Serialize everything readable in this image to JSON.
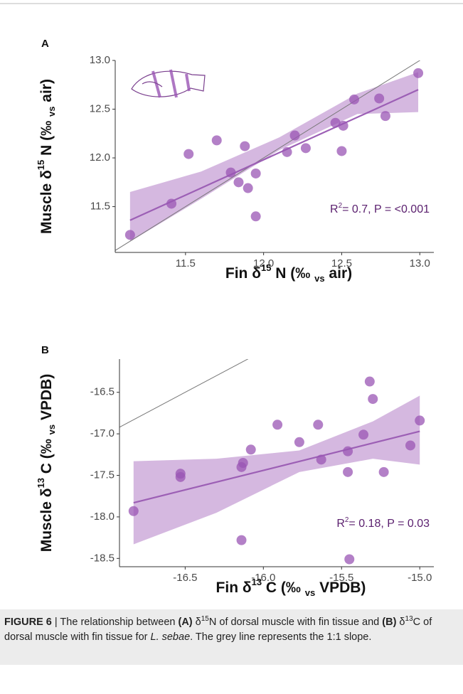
{
  "chart_data": [
    {
      "type": "scatter",
      "panel_label": "A",
      "x": [
        11.145,
        11.41,
        11.52,
        11.7,
        11.79,
        11.88,
        11.84,
        11.9,
        11.95,
        11.95,
        12.15,
        12.2,
        12.27,
        12.46,
        12.51,
        12.5,
        12.58,
        12.74,
        12.78,
        12.99
      ],
      "y": [
        11.21,
        11.53,
        12.04,
        12.18,
        11.85,
        12.12,
        11.75,
        11.69,
        11.84,
        11.4,
        12.06,
        12.23,
        12.1,
        12.36,
        12.33,
        12.07,
        12.6,
        12.61,
        12.43,
        12.87
      ],
      "fit": {
        "x": [
          11.145,
          12.99
        ],
        "y": [
          11.36,
          12.7
        ]
      },
      "band": {
        "x": [
          11.145,
          11.6,
          12.1,
          12.6,
          12.99
        ],
        "lower": [
          11.14,
          11.58,
          12.08,
          12.45,
          12.47
        ],
        "upper": [
          11.65,
          11.86,
          12.21,
          12.66,
          12.88
        ]
      },
      "color": "#9a55b4",
      "fit_color": "#9c5fb5",
      "band_color": "#c7a0d6",
      "identity_line": true,
      "identity_color": "#777777",
      "xlim": [
        11.05,
        13.09
      ],
      "ylim": [
        11.03,
        13.0
      ],
      "xticks": [
        11.5,
        {
          "value": 12.0,
          "label": "12.0"
        },
        12.5,
        {
          "value": 13.0,
          "label": "13.0"
        }
      ],
      "yticks": [
        11.5,
        {
          "value": 12.0,
          "label": "12.0"
        },
        12.5,
        {
          "value": 13.0,
          "label": "13.0"
        }
      ],
      "x_title": [
        {
          "text": "Fin δ"
        },
        {
          "text": "15",
          "style": "sup"
        },
        {
          "text": " N (‰ "
        },
        {
          "text": "vs",
          "style": "sub"
        },
        {
          "text": " air)"
        }
      ],
      "y_title": [
        {
          "text": "Muscle δ"
        },
        {
          "text": "15",
          "style": "sup"
        },
        {
          "text": " N (‰ "
        },
        {
          "text": "vs",
          "style": "sub"
        },
        {
          "text": " air)"
        }
      ],
      "annotation": [
        {
          "text": "R"
        },
        {
          "text": "2",
          "style": "sup"
        },
        {
          "text": "= 0.7, P = <0.001"
        }
      ]
    },
    {
      "type": "scatter",
      "panel_label": "B",
      "x": [
        -16.83,
        -16.53,
        -16.53,
        -16.14,
        -16.13,
        -16.14,
        -16.08,
        -15.91,
        -15.77,
        -15.65,
        -15.63,
        -15.45,
        -15.46,
        -15.46,
        -15.36,
        -15.32,
        -15.3,
        -15.23,
        -15.06,
        -15.0
      ],
      "y": [
        -17.93,
        -17.48,
        -17.52,
        -18.28,
        -17.35,
        -17.4,
        -17.19,
        -16.89,
        -17.1,
        -16.89,
        -17.31,
        -18.51,
        -17.21,
        -17.46,
        -17.01,
        -16.37,
        -16.58,
        -17.46,
        -17.14,
        -16.84
      ],
      "fit": {
        "x": [
          -16.83,
          -15.0
        ],
        "y": [
          -17.83,
          -16.97
        ]
      },
      "band": {
        "x": [
          -16.83,
          -16.3,
          -15.77,
          -15.3,
          -15.0
        ],
        "lower": [
          -18.33,
          -17.95,
          -17.46,
          -17.3,
          -17.37
        ],
        "upper": [
          -17.33,
          -17.3,
          -17.2,
          -16.85,
          -16.54
        ]
      },
      "color": "#9a55b4",
      "fit_color": "#9c5fb5",
      "band_color": "#c7a0d6",
      "identity_line": true,
      "identity_color": "#777777",
      "xlim": [
        -16.92,
        -14.91
      ],
      "ylim": [
        -18.6,
        -16.1
      ],
      "xticks": [
        -16.5,
        {
          "value": -16.0,
          "label": "-16.0"
        },
        -15.5,
        {
          "value": -15.0,
          "label": "-15.0"
        }
      ],
      "yticks": [
        -16.5,
        {
          "value": -17.0,
          "label": "-17.0"
        },
        -17.5,
        {
          "value": -18.0,
          "label": "-18.0"
        },
        -18.5
      ],
      "x_title": [
        {
          "text": "Fin δ"
        },
        {
          "text": "13",
          "style": "sup"
        },
        {
          "text": " C (‰ "
        },
        {
          "text": "vs",
          "style": "sub"
        },
        {
          "text": " VPDB)"
        }
      ],
      "y_title": [
        {
          "text": "Muscle δ"
        },
        {
          "text": "13",
          "style": "sup"
        },
        {
          "text": " C (‰ "
        },
        {
          "text": "vs",
          "style": "sub"
        },
        {
          "text": " VPDB)"
        }
      ],
      "annotation": [
        {
          "text": "R"
        },
        {
          "text": "2",
          "style": "sup"
        },
        {
          "text": "= 0.18, P = 0.03"
        }
      ]
    }
  ],
  "caption": [
    {
      "text": "FIGURE 6",
      "style": "bold"
    },
    {
      "text": " | The relationship between "
    },
    {
      "text": "(A)",
      "style": "bold"
    },
    {
      "text": " δ"
    },
    {
      "text": "15",
      "style": "sup"
    },
    {
      "text": "N of dorsal muscle with fin tissue and "
    },
    {
      "text": "(B)",
      "style": "bold"
    },
    {
      "text": " δ"
    },
    {
      "text": "13",
      "style": "sup"
    },
    {
      "text": "C of dorsal muscle with fin tissue for "
    },
    {
      "text": "L. sebae",
      "style": "italic"
    },
    {
      "text": ". The grey line represents the 1:1 slope."
    }
  ]
}
